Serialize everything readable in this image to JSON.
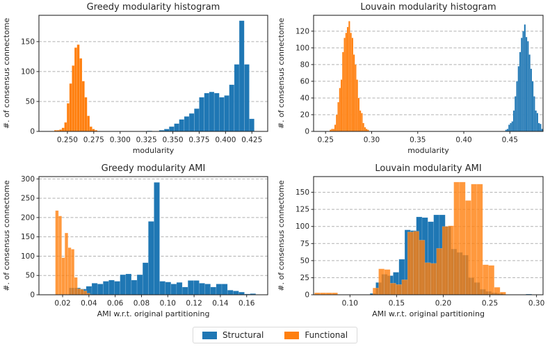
{
  "figure": {
    "background": "#ffffff",
    "text_color": "#262626",
    "grid_color": "#b0b0b0",
    "accent_blue": "#1f77b4",
    "accent_orange": "#ff7f0e"
  },
  "legend": {
    "items": [
      {
        "label": "Structural",
        "color": "#1f77b4"
      },
      {
        "label": "Functional",
        "color": "#ff7f0e"
      }
    ]
  },
  "chart_data": [
    {
      "id": "greedy-modularity-histogram",
      "type": "bar",
      "title": "Greedy modularity histogram",
      "xlabel": "modularity",
      "ylabel": "#. of consensus connectome",
      "xlim": [
        0.223,
        0.44
      ],
      "ylim": [
        0,
        194
      ],
      "grid": "dashed-y",
      "legend_position": "figure-bottom",
      "xticks": [
        {
          "v": 0.25,
          "label": "0.250"
        },
        {
          "v": 0.275,
          "label": "0.275"
        },
        {
          "v": 0.3,
          "label": "0.300"
        },
        {
          "v": 0.325,
          "label": "0.325"
        },
        {
          "v": 0.35,
          "label": "0.350"
        },
        {
          "v": 0.375,
          "label": "0.375"
        },
        {
          "v": 0.4,
          "label": "0.400"
        },
        {
          "v": 0.425,
          "label": "0.425"
        }
      ],
      "yticks": [
        0,
        50,
        100,
        150
      ],
      "series": [
        {
          "name": "Structural",
          "color": "#1f77b4",
          "alpha": 1,
          "bin_width": 0.00475,
          "bins": [
            [
              0.3255,
              1
            ],
            [
              0.337,
              2
            ],
            [
              0.3418,
              4
            ],
            [
              0.3465,
              8
            ],
            [
              0.3513,
              13
            ],
            [
              0.356,
              20
            ],
            [
              0.3608,
              25
            ],
            [
              0.3655,
              30
            ],
            [
              0.3703,
              38
            ],
            [
              0.375,
              57
            ],
            [
              0.3798,
              64
            ],
            [
              0.3845,
              66
            ],
            [
              0.3893,
              64
            ],
            [
              0.394,
              57
            ],
            [
              0.3988,
              60
            ],
            [
              0.4035,
              78
            ],
            [
              0.4083,
              112
            ],
            [
              0.413,
              185
            ],
            [
              0.4178,
              112
            ],
            [
              0.4225,
              21
            ]
          ]
        },
        {
          "name": "Functional",
          "color": "#ff7f0e",
          "alpha": 1,
          "bin_width": 0.0024,
          "bins": [
            [
              0.2375,
              2
            ],
            [
              0.2399,
              2
            ],
            [
              0.2423,
              3
            ],
            [
              0.2447,
              6
            ],
            [
              0.2471,
              15
            ],
            [
              0.2495,
              47
            ],
            [
              0.2519,
              80
            ],
            [
              0.2543,
              110
            ],
            [
              0.2567,
              140
            ],
            [
              0.2591,
              145
            ],
            [
              0.2615,
              122
            ],
            [
              0.2639,
              84
            ],
            [
              0.2663,
              57
            ],
            [
              0.2687,
              26
            ],
            [
              0.2711,
              8
            ],
            [
              0.2735,
              4
            ],
            [
              0.2759,
              2
            ]
          ]
        }
      ]
    },
    {
      "id": "louvain-modularity-histogram",
      "type": "bar",
      "title": "Louvain modularity histogram",
      "xlabel": "modularity",
      "ylabel": "#. of consensus connectome",
      "xlim": [
        0.237,
        0.486
      ],
      "ylim": [
        0,
        139
      ],
      "grid": "dashed-y",
      "xticks": [
        {
          "v": 0.25,
          "label": "0.25"
        },
        {
          "v": 0.3,
          "label": "0.30"
        },
        {
          "v": 0.35,
          "label": "0.35"
        },
        {
          "v": 0.4,
          "label": "0.40"
        },
        {
          "v": 0.45,
          "label": "0.45"
        }
      ],
      "yticks": [
        0,
        20,
        40,
        60,
        80,
        100,
        120
      ],
      "series": [
        {
          "name": "Structural",
          "color": "#1f77b4",
          "alpha": 1,
          "bin_width": 0.0017,
          "bins": [
            [
              0.445,
              2
            ],
            [
              0.4467,
              3
            ],
            [
              0.4484,
              8
            ],
            [
              0.4501,
              10
            ],
            [
              0.4518,
              12
            ],
            [
              0.4535,
              25
            ],
            [
              0.4552,
              42
            ],
            [
              0.4569,
              60
            ],
            [
              0.4586,
              78
            ],
            [
              0.4603,
              95
            ],
            [
              0.462,
              112
            ],
            [
              0.4637,
              120
            ],
            [
              0.4654,
              128
            ],
            [
              0.4671,
              113
            ],
            [
              0.4688,
              108
            ],
            [
              0.4705,
              92
            ],
            [
              0.4722,
              75
            ],
            [
              0.4739,
              60
            ],
            [
              0.4756,
              42
            ],
            [
              0.4773,
              25
            ],
            [
              0.479,
              22
            ],
            [
              0.4807,
              10
            ],
            [
              0.4824,
              9
            ],
            [
              0.4841,
              3
            ]
          ]
        },
        {
          "name": "Functional",
          "color": "#ff7f0e",
          "alpha": 1,
          "bin_width": 0.0017,
          "bins": [
            [
              0.2545,
              2
            ],
            [
              0.2562,
              3
            ],
            [
              0.2579,
              3
            ],
            [
              0.2596,
              8
            ],
            [
              0.2613,
              20
            ],
            [
              0.263,
              35
            ],
            [
              0.2647,
              52
            ],
            [
              0.2664,
              62
            ],
            [
              0.2681,
              95
            ],
            [
              0.2698,
              112
            ],
            [
              0.2715,
              118
            ],
            [
              0.2732,
              125
            ],
            [
              0.2749,
              132
            ],
            [
              0.2766,
              118
            ],
            [
              0.2783,
              112
            ],
            [
              0.28,
              92
            ],
            [
              0.2817,
              80
            ],
            [
              0.2834,
              62
            ],
            [
              0.2851,
              40
            ],
            [
              0.2868,
              25
            ],
            [
              0.2885,
              22
            ],
            [
              0.2902,
              10
            ],
            [
              0.2919,
              5
            ],
            [
              0.2936,
              3
            ],
            [
              0.2953,
              2
            ]
          ]
        }
      ]
    },
    {
      "id": "greedy-modularity-ami",
      "type": "bar",
      "title": "Greedy modularity AMI",
      "xlabel": "AMI w.r.t. original partitioning",
      "ylabel": "#. of consensus connectome",
      "xlim": [
        0.002,
        0.176
      ],
      "ylim": [
        0,
        306
      ],
      "grid": "dashed-y",
      "xticks": [
        {
          "v": 0.02,
          "label": "0.02"
        },
        {
          "v": 0.04,
          "label": "0.04"
        },
        {
          "v": 0.06,
          "label": "0.06"
        },
        {
          "v": 0.08,
          "label": "0.08"
        },
        {
          "v": 0.1,
          "label": "0.10"
        },
        {
          "v": 0.12,
          "label": "0.12"
        },
        {
          "v": 0.14,
          "label": "0.14"
        },
        {
          "v": 0.16,
          "label": "0.16"
        }
      ],
      "yticks": [
        0,
        50,
        100,
        150,
        200,
        250,
        300
      ],
      "series": [
        {
          "name": "Structural",
          "color": "#1f77b4",
          "alpha": 1,
          "bin_width": 0.0043,
          "bins": [
            [
              0.025,
              18
            ],
            [
              0.0293,
              18
            ],
            [
              0.0336,
              15
            ],
            [
              0.0379,
              22
            ],
            [
              0.0422,
              30
            ],
            [
              0.0465,
              28
            ],
            [
              0.0508,
              35
            ],
            [
              0.0551,
              38
            ],
            [
              0.0594,
              35
            ],
            [
              0.0637,
              52
            ],
            [
              0.068,
              54
            ],
            [
              0.0723,
              38
            ],
            [
              0.0766,
              52
            ],
            [
              0.0809,
              83
            ],
            [
              0.0852,
              190
            ],
            [
              0.0895,
              291
            ],
            [
              0.0938,
              35
            ],
            [
              0.0981,
              33
            ],
            [
              0.1024,
              28
            ],
            [
              0.1067,
              32
            ],
            [
              0.111,
              20
            ],
            [
              0.1153,
              37
            ],
            [
              0.1196,
              37
            ],
            [
              0.1239,
              30
            ],
            [
              0.1282,
              28
            ],
            [
              0.1325,
              20
            ],
            [
              0.1368,
              28
            ],
            [
              0.1411,
              28
            ],
            [
              0.1454,
              12
            ],
            [
              0.1497,
              10
            ],
            [
              0.154,
              7
            ],
            [
              0.1583,
              2
            ],
            [
              0.1626,
              3
            ]
          ]
        },
        {
          "name": "Functional",
          "color": "#ff7f0e",
          "alpha": 0.8,
          "bin_width": 0.0024,
          "bins": [
            [
              0.0145,
              218
            ],
            [
              0.0169,
              204
            ],
            [
              0.0193,
              96
            ],
            [
              0.0217,
              160
            ],
            [
              0.0241,
              122
            ],
            [
              0.0265,
              118
            ],
            [
              0.0289,
              45
            ],
            [
              0.0313,
              16
            ],
            [
              0.0337,
              14
            ],
            [
              0.0361,
              10
            ],
            [
              0.0385,
              4
            ]
          ]
        }
      ]
    },
    {
      "id": "louvain-modularity-ami",
      "type": "bar",
      "title": "Louvain modularity AMI",
      "xlabel": "AMI w.r.t. original partitioning",
      "ylabel": "#. of consensus connectome",
      "xlim": [
        0.061,
        0.307
      ],
      "ylim": [
        0,
        173
      ],
      "grid": "dashed-y",
      "xticks": [
        {
          "v": 0.1,
          "label": "0.10"
        },
        {
          "v": 0.15,
          "label": "0.15"
        },
        {
          "v": 0.2,
          "label": "0.20"
        },
        {
          "v": 0.25,
          "label": "0.25"
        },
        {
          "v": 0.3,
          "label": "0.30"
        }
      ],
      "yticks": [
        0,
        25,
        50,
        75,
        100,
        125,
        150
      ],
      "series": [
        {
          "name": "Structural",
          "color": "#1f77b4",
          "alpha": 1,
          "bin_width": 0.0062,
          "bins": [
            [
              0.1215,
              2
            ],
            [
              0.1277,
              18
            ],
            [
              0.1339,
              30
            ],
            [
              0.1401,
              28
            ],
            [
              0.1463,
              33
            ],
            [
              0.1525,
              52
            ],
            [
              0.1587,
              95
            ],
            [
              0.1649,
              94
            ],
            [
              0.1711,
              114
            ],
            [
              0.1773,
              113
            ],
            [
              0.1835,
              107
            ],
            [
              0.1897,
              117
            ],
            [
              0.1959,
              117
            ],
            [
              0.2021,
              100
            ],
            [
              0.2083,
              67
            ],
            [
              0.2145,
              62
            ],
            [
              0.2207,
              58
            ],
            [
              0.2269,
              25
            ],
            [
              0.2331,
              18
            ],
            [
              0.2393,
              8
            ],
            [
              0.2455,
              5
            ],
            [
              0.2517,
              3
            ],
            [
              0.2579,
              2
            ],
            [
              0.2887,
              1
            ]
          ]
        },
        {
          "name": "Functional",
          "color": "#ff7f0e",
          "alpha": 0.8,
          "bin_width": 0.0062,
          "bins": [
            [
              0.062,
              3
            ],
            [
              0.0682,
              3
            ],
            [
              0.0744,
              3
            ],
            [
              0.0806,
              3
            ],
            [
              0.1245,
              10
            ],
            [
              0.1307,
              38
            ],
            [
              0.1369,
              37
            ],
            [
              0.1431,
              17
            ],
            [
              0.1493,
              15
            ],
            [
              0.1555,
              22
            ],
            [
              0.1617,
              92
            ],
            [
              0.1679,
              93
            ],
            [
              0.1741,
              80
            ],
            [
              0.1803,
              47
            ],
            [
              0.1865,
              46
            ],
            [
              0.1927,
              68
            ],
            [
              0.1989,
              100
            ],
            [
              0.2051,
              101
            ],
            [
              0.2113,
              165
            ],
            [
              0.2175,
              165
            ],
            [
              0.2237,
              138
            ],
            [
              0.2299,
              162
            ],
            [
              0.2361,
              162
            ],
            [
              0.2423,
              44
            ],
            [
              0.2485,
              43
            ],
            [
              0.2547,
              11
            ],
            [
              0.2609,
              4
            ]
          ]
        }
      ]
    }
  ]
}
